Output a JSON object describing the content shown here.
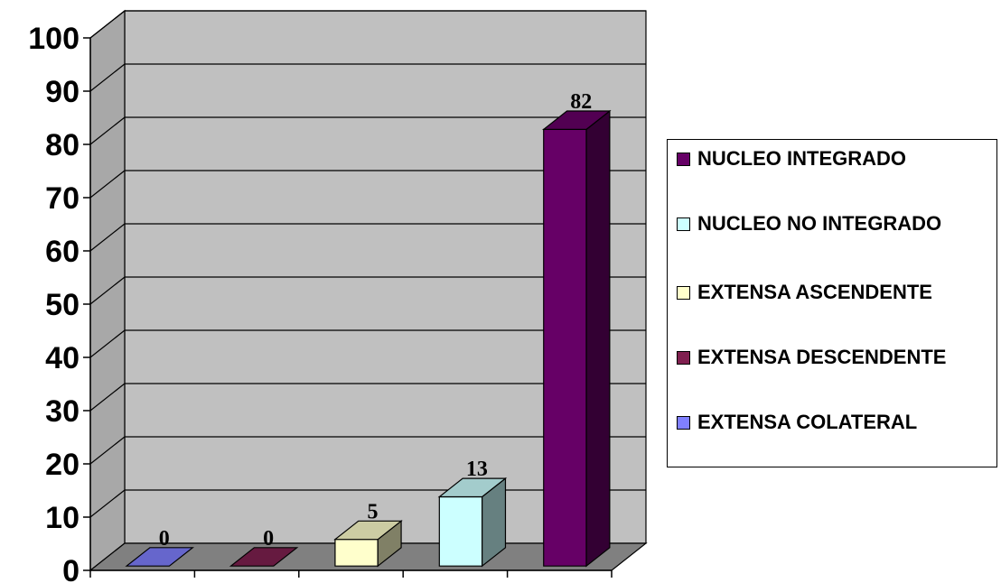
{
  "chart_data": {
    "type": "bar",
    "categories": [
      "EXTENSA COLATERAL",
      "EXTENSA DESCENDENTE",
      "EXTENSA ASCENDENTE",
      "NUCLEO NO INTEGRADO",
      "NUCLEO INTEGRADO"
    ],
    "values": [
      0,
      0,
      5,
      13,
      82
    ],
    "data_labels": [
      "0",
      "0",
      "5",
      "13",
      "82"
    ],
    "colors": [
      "#8080ff",
      "#802050",
      "#ffffcc",
      "#ccffff",
      "#660066"
    ],
    "ylim": [
      0,
      100
    ],
    "yticks": [
      "0",
      "10",
      "20",
      "30",
      "40",
      "50",
      "60",
      "70",
      "80",
      "90",
      "100"
    ],
    "grid": true,
    "three_d": true,
    "legend_position": "right",
    "legend": [
      {
        "label": "NUCLEO INTEGRADO",
        "color": "#660066"
      },
      {
        "label": "NUCLEO NO INTEGRADO",
        "color": "#ccffff"
      },
      {
        "label": "EXTENSA ASCENDENTE",
        "color": "#ffffcc"
      },
      {
        "label": "EXTENSA DESCENDENTE",
        "color": "#802050"
      },
      {
        "label": "EXTENSA COLATERAL",
        "color": "#8080ff"
      }
    ]
  }
}
